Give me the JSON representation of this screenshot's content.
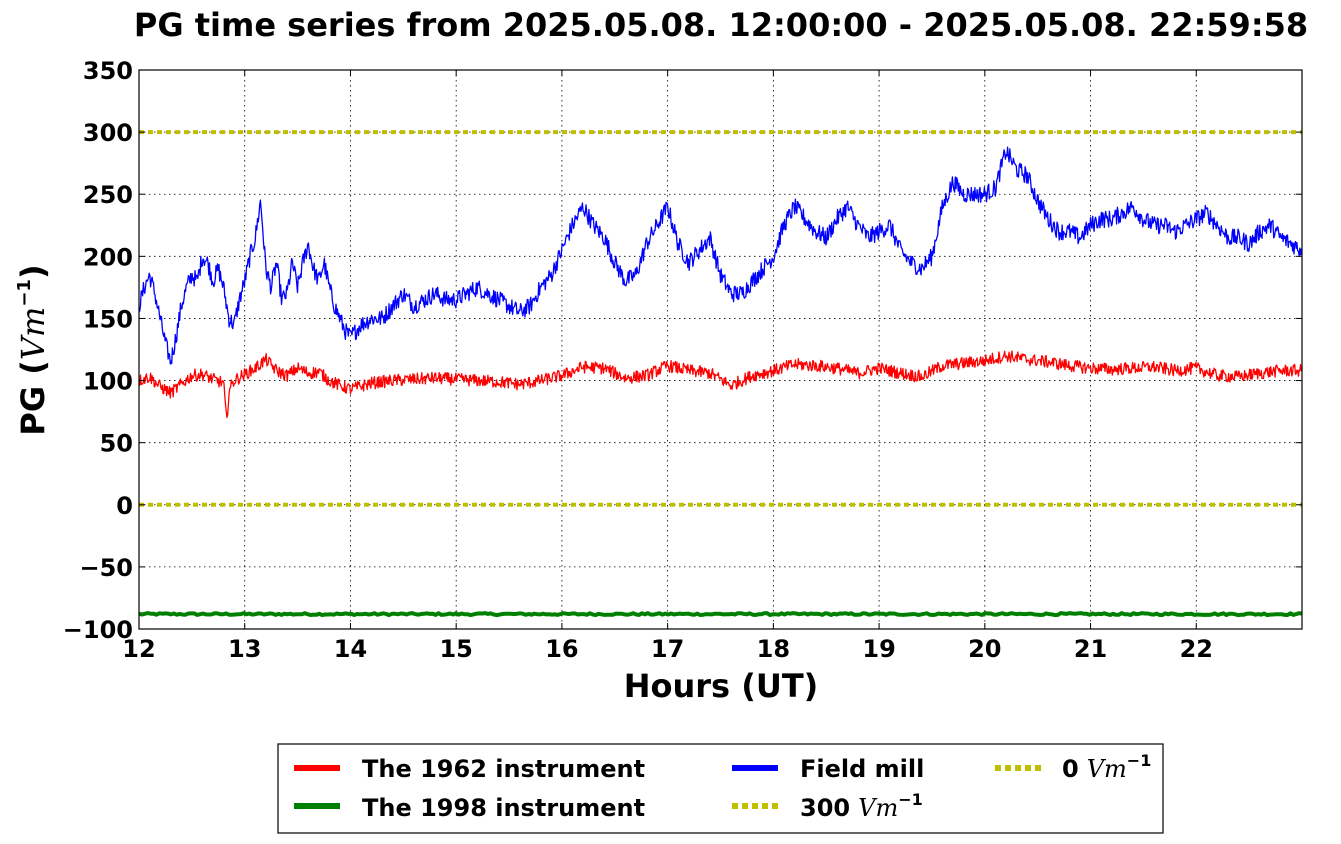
{
  "chart_data": {
    "type": "line",
    "title": "PG time series from 2025.05.08. 12:00:00 - 2025.05.08. 22:59:58",
    "xlabel": "Hours (UT)",
    "ylabel": {
      "prefix": "PG (",
      "math": "Vm",
      "sup": "−1",
      "suffix": ")"
    },
    "xlim": [
      12,
      23
    ],
    "ylim": [
      -100,
      350
    ],
    "x_ticks": [
      12,
      13,
      14,
      15,
      16,
      17,
      18,
      19,
      20,
      21,
      22
    ],
    "x_tick_labels": [
      "12",
      "13",
      "14",
      "15",
      "16",
      "17",
      "18",
      "19",
      "20",
      "21",
      "22"
    ],
    "y_ticks": [
      -100,
      -50,
      0,
      50,
      100,
      150,
      200,
      250,
      300,
      350
    ],
    "y_tick_labels": [
      "−100",
      "−50",
      "0",
      "50",
      "100",
      "150",
      "200",
      "250",
      "300",
      "350"
    ],
    "grid": true,
    "legend_placement": "below-center",
    "series": [
      {
        "id": "inst1962",
        "name": "The 1962 instrument",
        "color": "#ff0000",
        "style": "solid",
        "x": [
          12.0,
          12.1,
          12.2,
          12.3,
          12.4,
          12.5,
          12.6,
          12.7,
          12.8,
          12.83,
          12.85,
          12.9,
          13.0,
          13.1,
          13.2,
          13.3,
          13.4,
          13.5,
          13.6,
          13.7,
          13.8,
          13.9,
          14.0,
          14.2,
          14.4,
          14.6,
          14.8,
          15.0,
          15.2,
          15.4,
          15.6,
          15.8,
          16.0,
          16.2,
          16.4,
          16.6,
          16.8,
          17.0,
          17.2,
          17.4,
          17.6,
          17.8,
          18.0,
          18.2,
          18.4,
          18.6,
          18.8,
          19.0,
          19.2,
          19.4,
          19.6,
          19.8,
          20.0,
          20.2,
          20.4,
          20.6,
          20.8,
          21.0,
          21.2,
          21.4,
          21.6,
          21.8,
          22.0,
          22.2,
          22.4,
          22.6,
          22.8,
          23.0
        ],
        "y": [
          100,
          103,
          95,
          90,
          97,
          104,
          105,
          101,
          98,
          65,
          92,
          100,
          105,
          110,
          117,
          108,
          104,
          110,
          106,
          107,
          100,
          96,
          93,
          98,
          100,
          101,
          102,
          101,
          100,
          99,
          97,
          100,
          104,
          111,
          110,
          102,
          104,
          112,
          108,
          106,
          96,
          104,
          108,
          113,
          112,
          110,
          106,
          110,
          106,
          103,
          112,
          114,
          116,
          120,
          117,
          115,
          112,
          110,
          109,
          110,
          111,
          108,
          110,
          104,
          103,
          106,
          108,
          108
        ]
      },
      {
        "id": "inst1998",
        "name": "The 1998 instrument",
        "color": "#008000",
        "style": "solid",
        "x": [
          12.0,
          23.0
        ],
        "y": [
          -88,
          -88
        ]
      },
      {
        "id": "fieldmill",
        "name": "Field mill",
        "color": "#0000ff",
        "style": "solid",
        "x": [
          12.0,
          12.05,
          12.1,
          12.15,
          12.2,
          12.25,
          12.3,
          12.35,
          12.4,
          12.45,
          12.5,
          12.55,
          12.6,
          12.65,
          12.7,
          12.75,
          12.8,
          12.85,
          12.9,
          12.95,
          13.0,
          13.05,
          13.1,
          13.15,
          13.2,
          13.25,
          13.3,
          13.35,
          13.4,
          13.45,
          13.5,
          13.55,
          13.6,
          13.65,
          13.7,
          13.75,
          13.8,
          13.85,
          13.9,
          13.95,
          14.0,
          14.1,
          14.2,
          14.3,
          14.4,
          14.5,
          14.6,
          14.7,
          14.8,
          14.9,
          15.0,
          15.1,
          15.2,
          15.3,
          15.4,
          15.5,
          15.6,
          15.7,
          15.8,
          15.9,
          16.0,
          16.1,
          16.2,
          16.3,
          16.4,
          16.5,
          16.6,
          16.7,
          16.8,
          16.9,
          17.0,
          17.1,
          17.2,
          17.3,
          17.4,
          17.5,
          17.6,
          17.7,
          17.8,
          17.9,
          18.0,
          18.1,
          18.2,
          18.3,
          18.4,
          18.5,
          18.6,
          18.7,
          18.8,
          18.9,
          19.0,
          19.1,
          19.2,
          19.3,
          19.4,
          19.5,
          19.6,
          19.7,
          19.8,
          19.9,
          20.0,
          20.1,
          20.2,
          20.3,
          20.4,
          20.5,
          20.6,
          20.7,
          20.8,
          20.9,
          21.0,
          21.1,
          21.2,
          21.3,
          21.4,
          21.5,
          21.6,
          21.7,
          21.8,
          21.9,
          22.0,
          22.1,
          22.2,
          22.3,
          22.4,
          22.5,
          22.6,
          22.7,
          22.8,
          22.9,
          23.0
        ],
        "y": [
          160,
          175,
          185,
          170,
          150,
          130,
          115,
          135,
          160,
          175,
          185,
          180,
          200,
          195,
          180,
          190,
          175,
          150,
          145,
          165,
          180,
          200,
          215,
          245,
          190,
          175,
          195,
          165,
          170,
          195,
          175,
          195,
          210,
          190,
          180,
          195,
          175,
          160,
          150,
          140,
          135,
          145,
          150,
          150,
          160,
          170,
          160,
          165,
          170,
          165,
          165,
          170,
          175,
          170,
          165,
          160,
          155,
          160,
          175,
          185,
          205,
          225,
          240,
          225,
          215,
          195,
          180,
          185,
          210,
          225,
          240,
          210,
          195,
          205,
          215,
          185,
          170,
          170,
          180,
          190,
          200,
          225,
          240,
          230,
          220,
          215,
          230,
          240,
          225,
          215,
          220,
          225,
          205,
          195,
          190,
          200,
          240,
          260,
          250,
          250,
          250,
          255,
          285,
          270,
          265,
          245,
          230,
          220,
          220,
          215,
          225,
          230,
          230,
          235,
          240,
          230,
          225,
          225,
          220,
          225,
          230,
          235,
          225,
          215,
          215,
          210,
          220,
          225,
          215,
          210,
          205
        ]
      },
      {
        "id": "line300",
        "name": "300",
        "math": "Vm",
        "sup": "−1",
        "color": "#bfbf00",
        "style": "dotted",
        "x": [
          12.0,
          23.0
        ],
        "y": [
          300,
          300
        ]
      },
      {
        "id": "line0",
        "name": "0",
        "math": "Vm",
        "sup": "−1",
        "color": "#bfbf00",
        "style": "dotted",
        "x": [
          12.0,
          23.0
        ],
        "y": [
          0,
          0
        ]
      }
    ]
  }
}
